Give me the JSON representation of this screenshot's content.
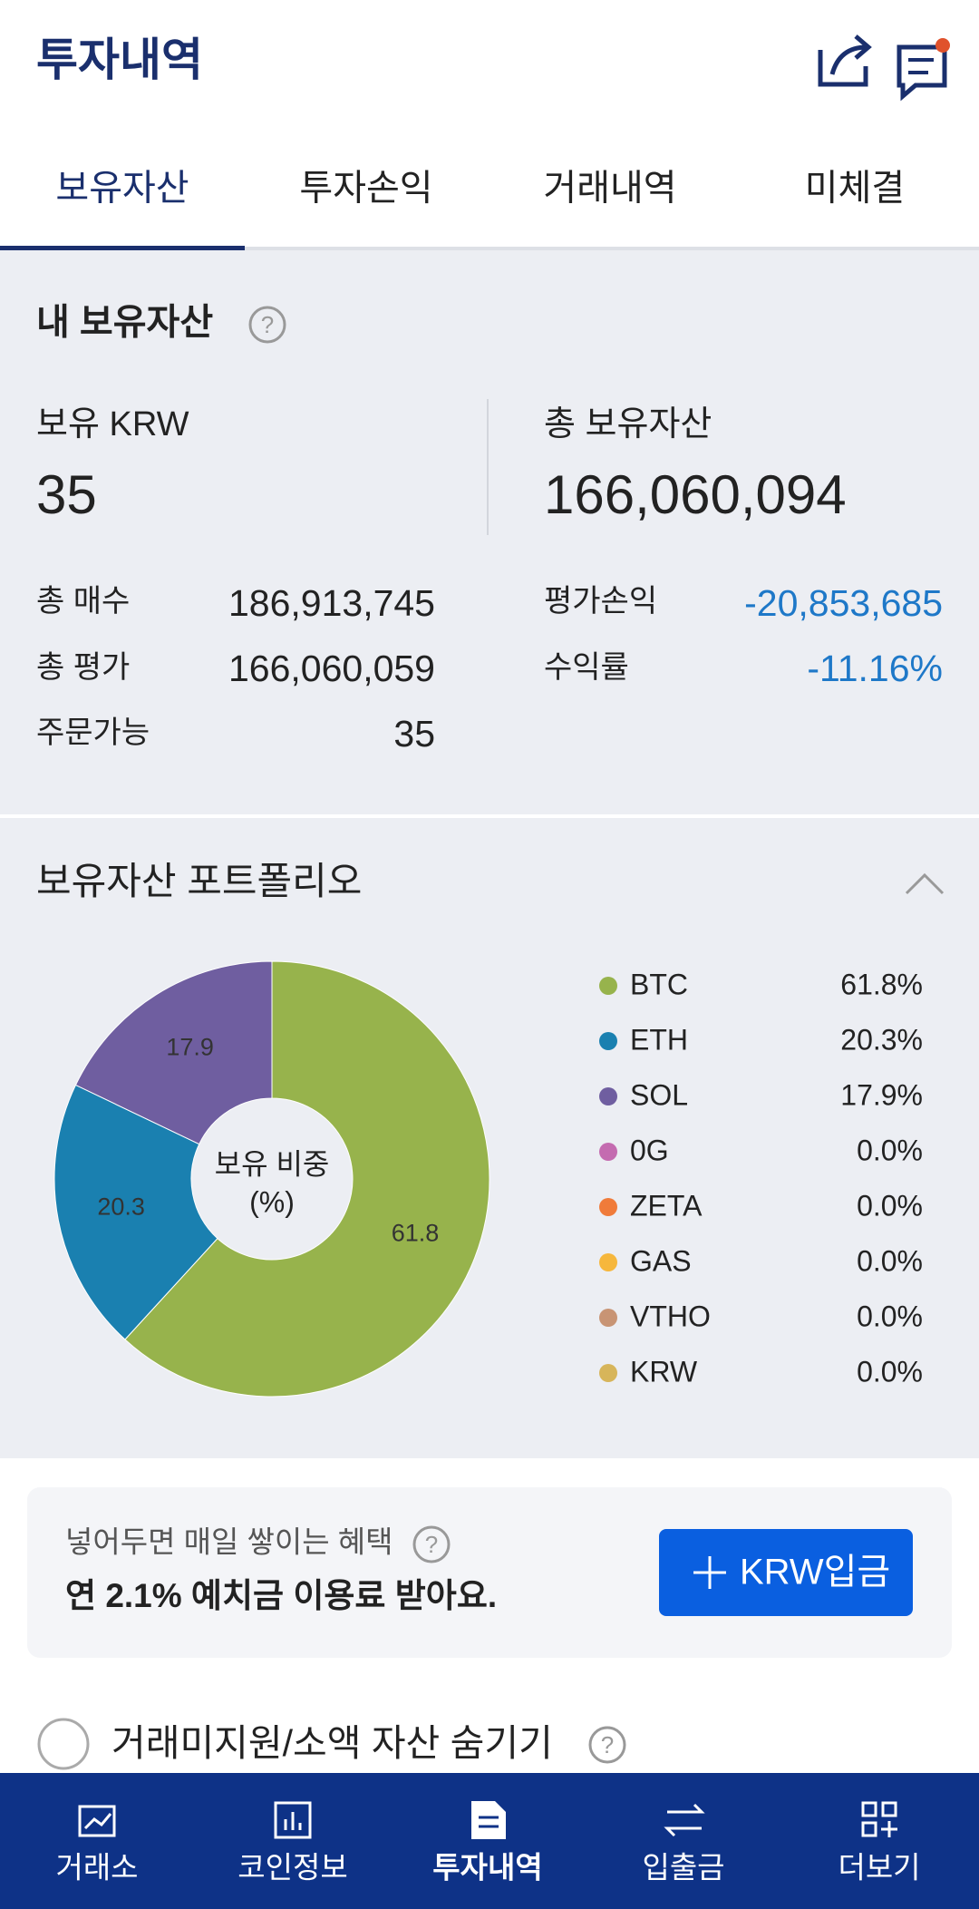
{
  "header": {
    "title": "투자내역"
  },
  "tabs": [
    "보유자산",
    "투자손익",
    "거래내역",
    "미체결"
  ],
  "help_icon": "?",
  "summary": {
    "title": "내 보유자산",
    "krw": {
      "label": "보유 KRW",
      "value": "35"
    },
    "total": {
      "label": "총 보유자산",
      "value": "166,060,094"
    },
    "left_details": [
      {
        "label": "총 매수",
        "value": "186,913,745"
      },
      {
        "label": "총 평가",
        "value": "166,060,059"
      },
      {
        "label": "주문가능",
        "value": "35"
      }
    ],
    "right_details": [
      {
        "label": "평가손익",
        "value": "-20,853,685"
      },
      {
        "label": "수익률",
        "value": "-11.16%"
      }
    ]
  },
  "portfolio": {
    "title": "보유자산 포트폴리오"
  },
  "chart_data": {
    "type": "donut",
    "center_label": "보유 비중",
    "center_unit": "(%)",
    "categories": [
      "BTC",
      "ETH",
      "SOL",
      "0G",
      "ZETA",
      "GAS",
      "VTHO",
      "KRW"
    ],
    "values": [
      61.8,
      20.3,
      17.9,
      0,
      0,
      0,
      0,
      0
    ],
    "value_labels": [
      "61.8%",
      "20.3%",
      "17.9%",
      "0.0%",
      "0.0%",
      "0.0%",
      "0.0%",
      "0.0%"
    ],
    "colors": [
      "#97b34c",
      "#1a80b0",
      "#6f5ea0",
      "#c46bb0",
      "#f07b3a",
      "#f6b73c",
      "#c89474",
      "#d7b55a"
    ]
  },
  "promo": {
    "subtitle": "넣어두면 매일 쌓이는 혜택",
    "headline": "연 2.1% 예치금 이용료 받아요.",
    "button": "KRW입금"
  },
  "hide_option": "거래미지원/소액 자산 숨기기",
  "nav": [
    "거래소",
    "코인정보",
    "투자내역",
    "입출금",
    "더보기"
  ]
}
